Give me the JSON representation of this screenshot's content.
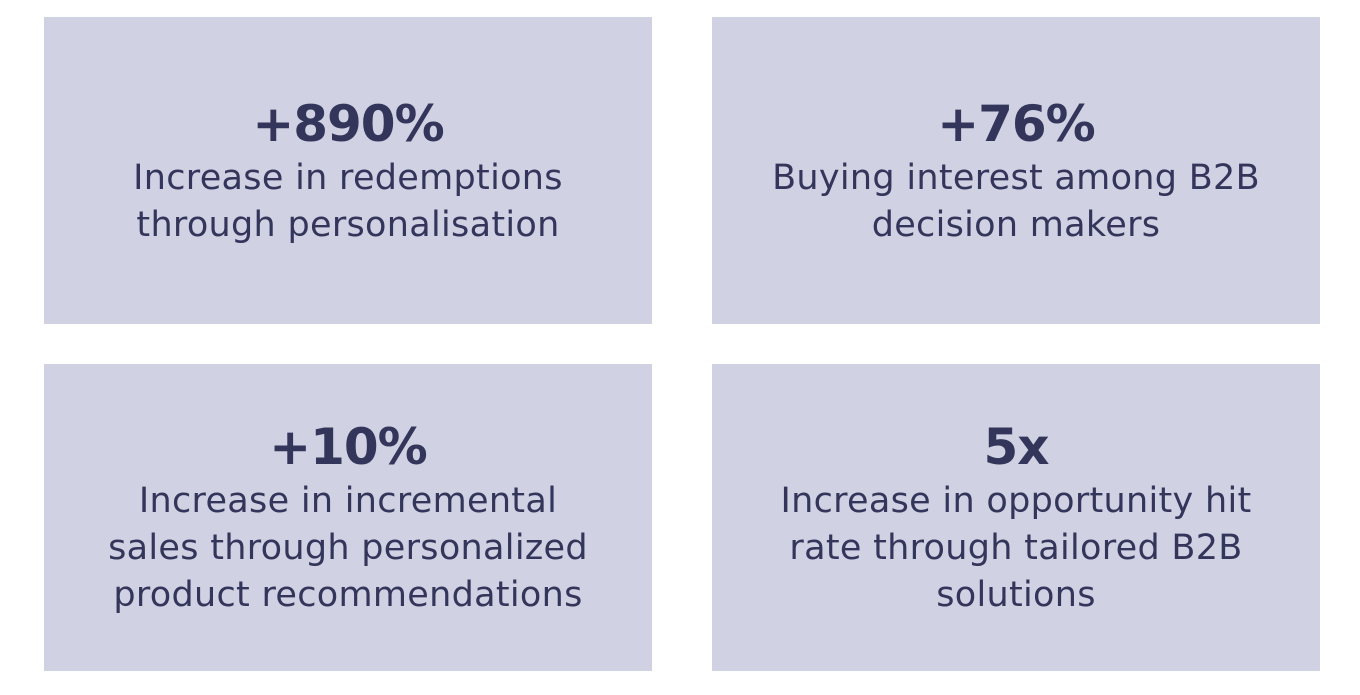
{
  "cards": [
    {
      "stat": "+890%",
      "lines": [
        "Increase in redemptions",
        "through personalisation"
      ]
    },
    {
      "stat": "+76%",
      "lines": [
        "Buying interest among B2B",
        "decision makers"
      ]
    },
    {
      "stat": "+10%",
      "lines": [
        "Increase in incremental",
        "sales through personalized",
        "product recommendations"
      ]
    },
    {
      "stat": "5x",
      "lines": [
        "Increase in opportunity hit",
        "rate through tailored B2B",
        "solutions"
      ]
    }
  ]
}
